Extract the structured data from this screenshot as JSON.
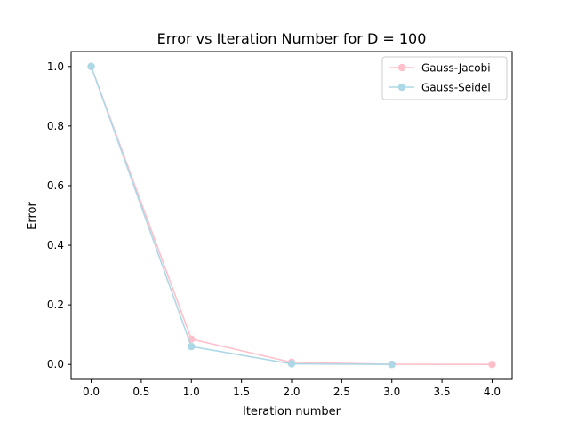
{
  "chart_data": {
    "type": "line",
    "title": "Error vs Iteration Number for D = 100",
    "xlabel": "Iteration number",
    "ylabel": "Error",
    "xlim": [
      -0.2,
      4.2
    ],
    "ylim": [
      -0.05,
      1.05
    ],
    "xticks": [
      0.0,
      0.5,
      1.0,
      1.5,
      2.0,
      2.5,
      3.0,
      3.5,
      4.0
    ],
    "xtick_labels": [
      "0.0",
      "0.5",
      "1.0",
      "1.5",
      "2.0",
      "2.5",
      "3.0",
      "3.5",
      "4.0"
    ],
    "yticks": [
      0.0,
      0.2,
      0.4,
      0.6,
      0.8,
      1.0
    ],
    "ytick_labels": [
      "0.0",
      "0.2",
      "0.4",
      "0.6",
      "0.8",
      "1.0"
    ],
    "grid": false,
    "legend_position": "top-right",
    "series": [
      {
        "name": "Gauss-Jacobi",
        "color": "#ffc0cb",
        "marker": "circle",
        "x": [
          0,
          1,
          2,
          3,
          4
        ],
        "y": [
          1.0,
          0.085,
          0.007,
          0.0005,
          0.0
        ]
      },
      {
        "name": "Gauss-Seidel",
        "color": "#add8e6",
        "marker": "circle",
        "x": [
          0,
          1,
          2,
          3
        ],
        "y": [
          1.0,
          0.06,
          0.002,
          0.0
        ]
      }
    ]
  }
}
